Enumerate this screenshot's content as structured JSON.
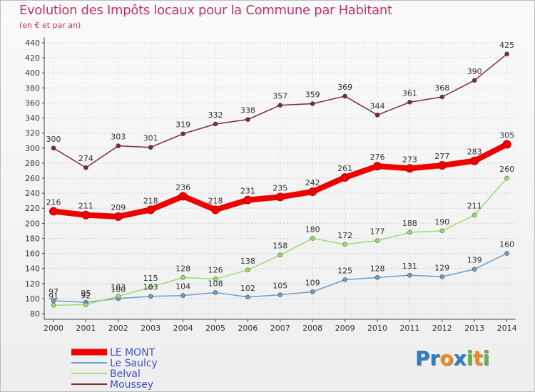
{
  "title": "Evolution des Impôts locaux pour la Commune par Habitant",
  "subtitle": "(en € et par an)",
  "logo": {
    "letters": [
      "P",
      "r",
      "o",
      "x",
      "i",
      "t",
      "i"
    ],
    "colors": [
      "#2e7fc2",
      "#2e7fc2",
      "#f28a1f",
      "#2e7fc2",
      "#6ab04c",
      "#f28a1f",
      "#6ab04c"
    ]
  },
  "chart_data": {
    "type": "line",
    "title": "Evolution des Impôts locaux pour la Commune par Habitant",
    "subtitle": "(en € et par an)",
    "x": [
      "2000",
      "2001",
      "2002",
      "2003",
      "2004",
      "2005",
      "2006",
      "2007",
      "2008",
      "2009",
      "2010",
      "2011",
      "2012",
      "2013",
      "2014"
    ],
    "ylim": [
      80,
      440
    ],
    "yticks": [
      80,
      100,
      120,
      140,
      160,
      180,
      200,
      220,
      240,
      260,
      280,
      300,
      320,
      340,
      360,
      380,
      400,
      420,
      440
    ],
    "grid": true,
    "legend": "bottom-left",
    "series": [
      {
        "name": "LE MONT",
        "color": "#ee0000",
        "width": 8,
        "values": [
          216,
          211,
          209,
          218,
          236,
          218,
          231,
          235,
          242,
          261,
          276,
          273,
          277,
          283,
          305
        ]
      },
      {
        "name": "Le Saulcy",
        "color": "#6d9fc8",
        "width": 1.5,
        "values": [
          97,
          95,
          100,
          103,
          104,
          108,
          102,
          105,
          109,
          125,
          128,
          131,
          129,
          139,
          160
        ]
      },
      {
        "name": "Belval",
        "color": "#9bdd73",
        "width": 1.5,
        "values": [
          91,
          92,
          103,
          115,
          128,
          126,
          138,
          158,
          180,
          172,
          177,
          188,
          190,
          211,
          260
        ]
      },
      {
        "name": "Moussey",
        "color": "#7a2f37",
        "width": 1.5,
        "values": [
          300,
          274,
          303,
          301,
          319,
          332,
          338,
          357,
          359,
          369,
          344,
          361,
          368,
          390,
          425
        ]
      }
    ]
  }
}
